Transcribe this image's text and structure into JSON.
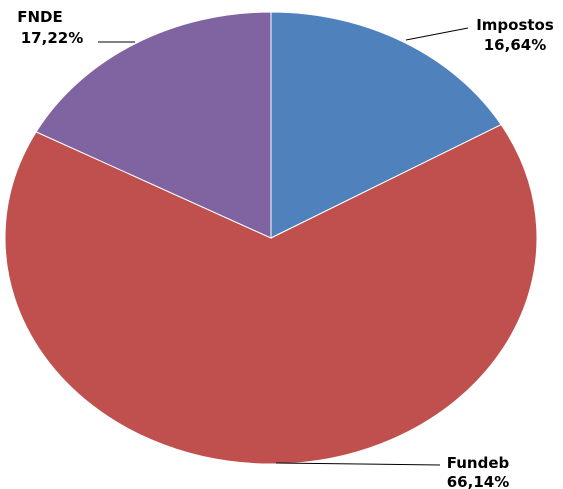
{
  "chart_data": {
    "type": "pie",
    "start_angle_deg": 90,
    "direction": "clockwise",
    "slices": [
      {
        "label": "Impostos",
        "value": 16.64,
        "value_label": "16,64%",
        "color": "#4f81bd"
      },
      {
        "label": "Fundeb",
        "value": 66.14,
        "value_label": "66,14%",
        "color": "#c0504d"
      },
      {
        "label": "FNDE",
        "value": 17.22,
        "value_label": "17,22%",
        "color": "#8064a2"
      }
    ],
    "legend": "none",
    "data_labels": "outside-with-leader-lines",
    "title": ""
  }
}
